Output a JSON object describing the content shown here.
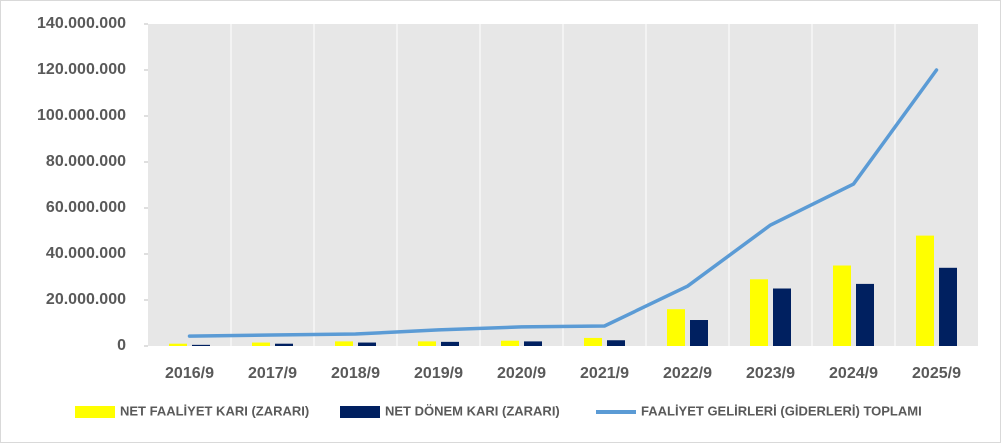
{
  "chart_data": {
    "type": "bar-line",
    "categories": [
      "2016/9",
      "2017/9",
      "2018/9",
      "2019/9",
      "2020/9",
      "2021/9",
      "2022/9",
      "2023/9",
      "2024/9",
      "2025/9"
    ],
    "series": [
      {
        "name": "NET FAALİYET KARI (ZARARI)",
        "type": "bar",
        "color": "#ffff00",
        "values": [
          1000000,
          1500000,
          2000000,
          2000000,
          2300000,
          3500000,
          16000000,
          29000000,
          35000000,
          48000000
        ]
      },
      {
        "name": "NET DÖNEM KARI (ZARARI)",
        "type": "bar",
        "color": "#002060",
        "values": [
          500000,
          1000000,
          1500000,
          1800000,
          2000000,
          2500000,
          11300000,
          25000000,
          27000000,
          34000000
        ]
      },
      {
        "name": "FAALİYET GELİRLERİ (GİDERLERİ) TOPLAMI",
        "type": "line",
        "color": "#5b9bd5",
        "values": [
          4300000,
          4800000,
          5200000,
          7000000,
          8300000,
          8700000,
          26000000,
          52600000,
          70400000,
          120000000
        ]
      }
    ],
    "ylim": [
      0,
      140000000
    ],
    "yticks": [
      0,
      {
        "value": 20000000,
        "label": "20.000.000"
      },
      {
        "value": 40000000,
        "label": "40.000.000"
      },
      {
        "value": 60000000,
        "label": "60.000.000"
      },
      {
        "value": 80000000,
        "label": "80.000.000"
      },
      {
        "value": 100000000,
        "label": "100.000.000"
      },
      {
        "value": 120000000,
        "label": "120.000.000"
      },
      {
        "value": 140000000,
        "label": "140.000.000"
      }
    ],
    "legend": "bottom"
  }
}
